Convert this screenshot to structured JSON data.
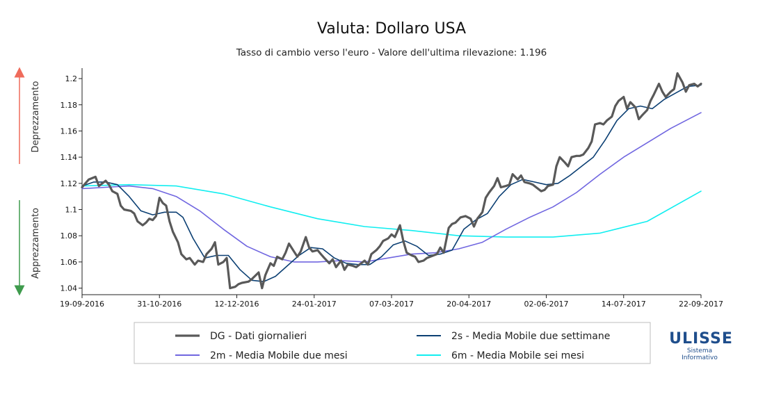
{
  "chart_data": {
    "type": "line",
    "title": "Valuta: Dollaro USA",
    "subtitle": "Tasso di cambio verso l'euro - Valore dell'ultima rilevazione: 1.196",
    "xlabel": "",
    "ylabel": "",
    "side_labels": {
      "top": "Deprezzamento",
      "bottom": "Apprezzamento"
    },
    "x_ticks": [
      "19-09-2016",
      "31-10-2016",
      "12-12-2016",
      "24-01-2017",
      "07-03-2017",
      "20-04-2017",
      "02-06-2017",
      "14-07-2017",
      "22-09-2017"
    ],
    "x_range": [
      "2016-09-19",
      "2017-09-22"
    ],
    "y_ticks": [
      1.04,
      1.06,
      1.08,
      1.1,
      1.12,
      1.14,
      1.16,
      1.18,
      1.2
    ],
    "ylim": [
      1.035,
      1.208
    ],
    "grid": false,
    "legend_position": "bottom",
    "series": [
      {
        "name": "DG - Dati giornalieri",
        "color": "#595959",
        "width": 3.2,
        "points": [
          [
            "2016-09-19",
            1.117
          ],
          [
            "2016-09-21",
            1.12
          ],
          [
            "2016-09-23",
            1.123
          ],
          [
            "2016-09-27",
            1.125
          ],
          [
            "2016-09-29",
            1.118
          ],
          [
            "2016-10-03",
            1.122
          ],
          [
            "2016-10-05",
            1.119
          ],
          [
            "2016-10-07",
            1.114
          ],
          [
            "2016-10-10",
            1.112
          ],
          [
            "2016-10-12",
            1.103
          ],
          [
            "2016-10-14",
            1.1
          ],
          [
            "2016-10-18",
            1.099
          ],
          [
            "2016-10-20",
            1.097
          ],
          [
            "2016-10-22",
            1.091
          ],
          [
            "2016-10-25",
            1.088
          ],
          [
            "2016-10-27",
            1.09
          ],
          [
            "2016-10-29",
            1.093
          ],
          [
            "2016-10-31",
            1.092
          ],
          [
            "2016-11-02",
            1.095
          ],
          [
            "2016-11-04",
            1.109
          ],
          [
            "2016-11-06",
            1.105
          ],
          [
            "2016-11-08",
            1.103
          ],
          [
            "2016-11-10",
            1.091
          ],
          [
            "2016-11-12",
            1.083
          ],
          [
            "2016-11-15",
            1.075
          ],
          [
            "2016-11-17",
            1.066
          ],
          [
            "2016-11-20",
            1.062
          ],
          [
            "2016-11-22",
            1.063
          ],
          [
            "2016-11-25",
            1.058
          ],
          [
            "2016-11-27",
            1.061
          ],
          [
            "2016-11-30",
            1.06
          ],
          [
            "2016-12-02",
            1.066
          ],
          [
            "2016-12-05",
            1.07
          ],
          [
            "2016-12-07",
            1.075
          ],
          [
            "2016-12-09",
            1.058
          ],
          [
            "2016-12-12",
            1.06
          ],
          [
            "2016-12-14",
            1.063
          ],
          [
            "2016-12-16",
            1.04
          ],
          [
            "2016-12-19",
            1.041
          ],
          [
            "2016-12-21",
            1.043
          ],
          [
            "2016-12-23",
            1.044
          ],
          [
            "2016-12-27",
            1.045
          ],
          [
            "2016-12-29",
            1.047
          ],
          [
            "2017-01-02",
            1.052
          ],
          [
            "2017-01-04",
            1.04
          ],
          [
            "2017-01-06",
            1.05
          ],
          [
            "2017-01-09",
            1.059
          ],
          [
            "2017-01-11",
            1.057
          ],
          [
            "2017-01-13",
            1.064
          ],
          [
            "2017-01-16",
            1.062
          ],
          [
            "2017-01-18",
            1.067
          ],
          [
            "2017-01-20",
            1.074
          ],
          [
            "2017-01-23",
            1.068
          ],
          [
            "2017-01-25",
            1.064
          ],
          [
            "2017-01-27",
            1.068
          ],
          [
            "2017-01-30",
            1.079
          ],
          [
            "2017-02-01",
            1.071
          ],
          [
            "2017-02-03",
            1.068
          ],
          [
            "2017-02-06",
            1.069
          ],
          [
            "2017-02-08",
            1.066
          ],
          [
            "2017-02-10",
            1.063
          ],
          [
            "2017-02-13",
            1.059
          ],
          [
            "2017-02-15",
            1.062
          ],
          [
            "2017-02-17",
            1.056
          ],
          [
            "2017-02-20",
            1.061
          ],
          [
            "2017-02-22",
            1.054
          ],
          [
            "2017-02-24",
            1.058
          ],
          [
            "2017-02-27",
            1.057
          ],
          [
            "2017-03-01",
            1.056
          ],
          [
            "2017-03-03",
            1.058
          ],
          [
            "2017-03-06",
            1.061
          ],
          [
            "2017-03-08",
            1.058
          ],
          [
            "2017-03-10",
            1.066
          ],
          [
            "2017-03-13",
            1.069
          ],
          [
            "2017-03-15",
            1.072
          ],
          [
            "2017-03-17",
            1.076
          ],
          [
            "2017-03-20",
            1.078
          ],
          [
            "2017-03-22",
            1.081
          ],
          [
            "2017-03-24",
            1.079
          ],
          [
            "2017-03-27",
            1.088
          ],
          [
            "2017-03-29",
            1.076
          ],
          [
            "2017-03-31",
            1.067
          ],
          [
            "2017-04-03",
            1.065
          ],
          [
            "2017-04-05",
            1.064
          ],
          [
            "2017-04-07",
            1.06
          ],
          [
            "2017-04-10",
            1.061
          ],
          [
            "2017-04-12",
            1.063
          ],
          [
            "2017-04-14",
            1.064
          ],
          [
            "2017-04-18",
            1.066
          ],
          [
            "2017-04-20",
            1.071
          ],
          [
            "2017-04-22",
            1.067
          ],
          [
            "2017-04-25",
            1.086
          ],
          [
            "2017-04-27",
            1.089
          ],
          [
            "2017-04-29",
            1.09
          ],
          [
            "2017-05-02",
            1.094
          ],
          [
            "2017-05-05",
            1.095
          ],
          [
            "2017-05-08",
            1.093
          ],
          [
            "2017-05-10",
            1.087
          ],
          [
            "2017-05-12",
            1.093
          ],
          [
            "2017-05-15",
            1.098
          ],
          [
            "2017-05-17",
            1.109
          ],
          [
            "2017-05-19",
            1.113
          ],
          [
            "2017-05-22",
            1.118
          ],
          [
            "2017-05-24",
            1.124
          ],
          [
            "2017-05-26",
            1.117
          ],
          [
            "2017-05-29",
            1.118
          ],
          [
            "2017-05-31",
            1.119
          ],
          [
            "2017-06-02",
            1.127
          ],
          [
            "2017-06-05",
            1.123
          ],
          [
            "2017-06-07",
            1.126
          ],
          [
            "2017-06-09",
            1.121
          ],
          [
            "2017-06-12",
            1.12
          ],
          [
            "2017-06-14",
            1.119
          ],
          [
            "2017-06-16",
            1.117
          ],
          [
            "2017-06-19",
            1.114
          ],
          [
            "2017-06-21",
            1.115
          ],
          [
            "2017-06-23",
            1.118
          ],
          [
            "2017-06-26",
            1.119
          ],
          [
            "2017-06-28",
            1.133
          ],
          [
            "2017-06-30",
            1.14
          ],
          [
            "2017-07-03",
            1.136
          ],
          [
            "2017-07-05",
            1.133
          ],
          [
            "2017-07-07",
            1.14
          ],
          [
            "2017-07-10",
            1.141
          ],
          [
            "2017-07-12",
            1.141
          ],
          [
            "2017-07-14",
            1.142
          ],
          [
            "2017-07-17",
            1.147
          ],
          [
            "2017-07-19",
            1.152
          ],
          [
            "2017-07-21",
            1.165
          ],
          [
            "2017-07-24",
            1.166
          ],
          [
            "2017-07-26",
            1.165
          ],
          [
            "2017-07-28",
            1.168
          ],
          [
            "2017-07-31",
            1.171
          ],
          [
            "2017-08-02",
            1.179
          ],
          [
            "2017-08-04",
            1.183
          ],
          [
            "2017-08-07",
            1.186
          ],
          [
            "2017-08-09",
            1.177
          ],
          [
            "2017-08-11",
            1.182
          ],
          [
            "2017-08-14",
            1.178
          ],
          [
            "2017-08-16",
            1.169
          ],
          [
            "2017-08-18",
            1.172
          ],
          [
            "2017-08-21",
            1.176
          ],
          [
            "2017-08-23",
            1.183
          ],
          [
            "2017-08-25",
            1.188
          ],
          [
            "2017-08-28",
            1.196
          ],
          [
            "2017-08-30",
            1.19
          ],
          [
            "2017-09-01",
            1.186
          ],
          [
            "2017-09-04",
            1.19
          ],
          [
            "2017-09-06",
            1.192
          ],
          [
            "2017-09-08",
            1.204
          ],
          [
            "2017-09-11",
            1.197
          ],
          [
            "2017-09-13",
            1.19
          ],
          [
            "2017-09-15",
            1.195
          ],
          [
            "2017-09-18",
            1.196
          ],
          [
            "2017-09-20",
            1.194
          ],
          [
            "2017-09-22",
            1.196
          ]
        ]
      },
      {
        "name": "2s - Media Mobile due settimane",
        "color": "#0b3f73",
        "width": 1.6,
        "points": [
          [
            "2016-09-19",
            1.118
          ],
          [
            "2016-09-26",
            1.121
          ],
          [
            "2016-10-03",
            1.121
          ],
          [
            "2016-10-10",
            1.119
          ],
          [
            "2016-10-17",
            1.11
          ],
          [
            "2016-10-24",
            1.099
          ],
          [
            "2016-10-31",
            1.096
          ],
          [
            "2016-11-07",
            1.098
          ],
          [
            "2016-11-14",
            1.098
          ],
          [
            "2016-11-18",
            1.094
          ],
          [
            "2016-11-24",
            1.078
          ],
          [
            "2016-12-01",
            1.063
          ],
          [
            "2016-12-08",
            1.065
          ],
          [
            "2016-12-15",
            1.065
          ],
          [
            "2016-12-22",
            1.054
          ],
          [
            "2016-12-29",
            1.046
          ],
          [
            "2017-01-05",
            1.045
          ],
          [
            "2017-01-12",
            1.049
          ],
          [
            "2017-01-19",
            1.057
          ],
          [
            "2017-01-26",
            1.065
          ],
          [
            "2017-02-02",
            1.071
          ],
          [
            "2017-02-09",
            1.07
          ],
          [
            "2017-02-16",
            1.063
          ],
          [
            "2017-02-23",
            1.059
          ],
          [
            "2017-03-02",
            1.058
          ],
          [
            "2017-03-09",
            1.058
          ],
          [
            "2017-03-16",
            1.064
          ],
          [
            "2017-03-23",
            1.073
          ],
          [
            "2017-03-30",
            1.076
          ],
          [
            "2017-04-06",
            1.072
          ],
          [
            "2017-04-13",
            1.065
          ],
          [
            "2017-04-20",
            1.066
          ],
          [
            "2017-04-27",
            1.069
          ],
          [
            "2017-05-04",
            1.085
          ],
          [
            "2017-05-11",
            1.092
          ],
          [
            "2017-05-18",
            1.097
          ],
          [
            "2017-05-25",
            1.11
          ],
          [
            "2017-06-01",
            1.119
          ],
          [
            "2017-06-08",
            1.123
          ],
          [
            "2017-06-15",
            1.121
          ],
          [
            "2017-06-22",
            1.119
          ],
          [
            "2017-06-29",
            1.12
          ],
          [
            "2017-07-06",
            1.126
          ],
          [
            "2017-07-13",
            1.133
          ],
          [
            "2017-07-20",
            1.14
          ],
          [
            "2017-07-27",
            1.153
          ],
          [
            "2017-08-03",
            1.168
          ],
          [
            "2017-08-10",
            1.177
          ],
          [
            "2017-08-17",
            1.179
          ],
          [
            "2017-08-24",
            1.177
          ],
          [
            "2017-08-31",
            1.184
          ],
          [
            "2017-09-07",
            1.189
          ],
          [
            "2017-09-14",
            1.194
          ],
          [
            "2017-09-22",
            1.195
          ]
        ]
      },
      {
        "name": "2m - Media Mobile due mesi",
        "color": "#7066e0",
        "width": 1.6,
        "points": [
          [
            "2016-09-19",
            1.116
          ],
          [
            "2016-10-03",
            1.117
          ],
          [
            "2016-10-17",
            1.118
          ],
          [
            "2016-10-31",
            1.116
          ],
          [
            "2016-11-14",
            1.11
          ],
          [
            "2016-11-28",
            1.099
          ],
          [
            "2016-12-12",
            1.085
          ],
          [
            "2016-12-26",
            1.072
          ],
          [
            "2017-01-09",
            1.064
          ],
          [
            "2017-01-23",
            1.06
          ],
          [
            "2017-02-06",
            1.06
          ],
          [
            "2017-02-20",
            1.061
          ],
          [
            "2017-03-06",
            1.06
          ],
          [
            "2017-03-20",
            1.063
          ],
          [
            "2017-04-03",
            1.066
          ],
          [
            "2017-04-17",
            1.067
          ],
          [
            "2017-05-01",
            1.07
          ],
          [
            "2017-05-15",
            1.075
          ],
          [
            "2017-05-29",
            1.085
          ],
          [
            "2017-06-12",
            1.094
          ],
          [
            "2017-06-26",
            1.102
          ],
          [
            "2017-07-10",
            1.113
          ],
          [
            "2017-07-24",
            1.127
          ],
          [
            "2017-08-07",
            1.14
          ],
          [
            "2017-08-21",
            1.151
          ],
          [
            "2017-09-04",
            1.162
          ],
          [
            "2017-09-22",
            1.174
          ]
        ]
      },
      {
        "name": "6m - Media Mobile sei mesi",
        "color": "#11eef0",
        "width": 1.6,
        "points": [
          [
            "2016-09-19",
            1.118
          ],
          [
            "2016-10-17",
            1.119
          ],
          [
            "2016-11-14",
            1.118
          ],
          [
            "2016-12-12",
            1.112
          ],
          [
            "2017-01-09",
            1.102
          ],
          [
            "2017-02-06",
            1.093
          ],
          [
            "2017-03-06",
            1.087
          ],
          [
            "2017-04-03",
            1.084
          ],
          [
            "2017-05-01",
            1.08
          ],
          [
            "2017-05-29",
            1.079
          ],
          [
            "2017-06-26",
            1.079
          ],
          [
            "2017-07-24",
            1.082
          ],
          [
            "2017-08-21",
            1.091
          ],
          [
            "2017-09-22",
            1.114
          ]
        ]
      }
    ]
  },
  "logo": {
    "text": "ULISSE",
    "sub1": "Sistema",
    "sub2": "Informativo"
  }
}
